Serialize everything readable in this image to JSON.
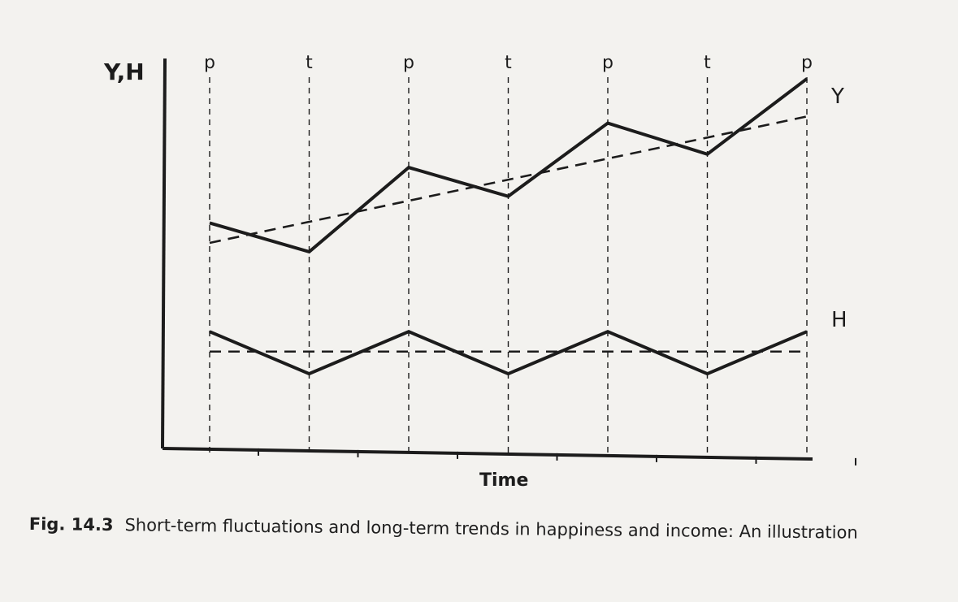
{
  "chart_data": {
    "type": "line",
    "ylabel": "Y,H",
    "xlabel": "Time",
    "phase_labels": [
      "p",
      "t",
      "p",
      "t",
      "p",
      "t",
      "p"
    ],
    "x": [
      0,
      1,
      2,
      3,
      4,
      5,
      6
    ],
    "series": [
      {
        "name": "Y",
        "values": [
          6.0,
          5.35,
          7.25,
          6.6,
          8.25,
          7.55,
          9.25
        ],
        "style": "solid"
      },
      {
        "name": "H",
        "values": [
          3.55,
          2.6,
          3.55,
          2.6,
          3.55,
          2.6,
          3.55
        ],
        "style": "solid"
      }
    ],
    "trends": [
      {
        "for": "Y",
        "start": 5.55,
        "end": 8.4,
        "style": "dashed"
      },
      {
        "for": "H",
        "start": 3.1,
        "end": 3.1,
        "style": "dashed"
      }
    ],
    "ylim": [
      0,
      10
    ],
    "grid": "vertical dashed lines at each p/t point",
    "legend": "labels at right end of lines"
  },
  "caption": {
    "label": "Fig. 14.3",
    "text": "Short-term fluctuations and long-term trends in happiness and income: An illustration"
  },
  "colors": {
    "ink": "#1c1c1c",
    "paper": "#f3f2ef"
  }
}
